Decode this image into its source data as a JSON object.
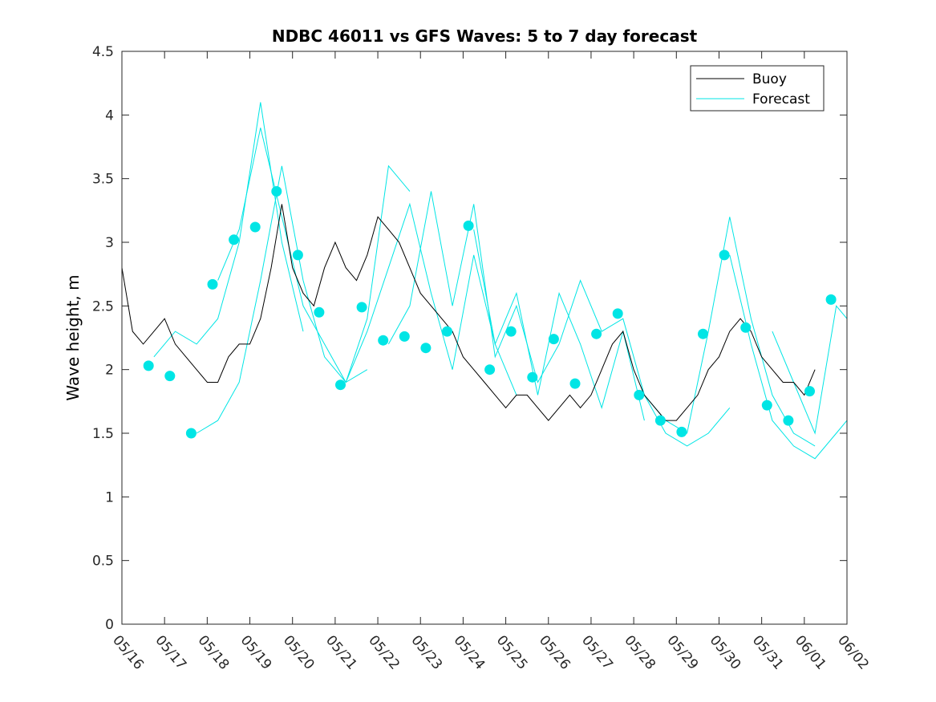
{
  "chart_data": {
    "type": "line",
    "title": "NDBC 46011 vs GFS Waves: 5 to 7 day forecast",
    "xlabel": "",
    "ylabel": "Wave height, m",
    "xlim": [
      "05/16",
      "06/02"
    ],
    "ylim": [
      0,
      4.5
    ],
    "x_ticks": [
      "05/16",
      "05/17",
      "05/18",
      "05/19",
      "05/20",
      "05/21",
      "05/22",
      "05/23",
      "05/24",
      "05/25",
      "05/26",
      "05/27",
      "05/28",
      "05/29",
      "05/30",
      "05/31",
      "06/01",
      "06/02"
    ],
    "y_ticks": [
      "0",
      "0.5",
      "1",
      "1.5",
      "2",
      "2.5",
      "3",
      "3.5",
      "4",
      "4.5"
    ],
    "grid": false,
    "legend": {
      "placement": "top-right",
      "entries": [
        {
          "label": "Buoy",
          "color": "#000000"
        },
        {
          "label": "Forecast",
          "color": "#00e5e5"
        }
      ]
    },
    "series": [
      {
        "name": "Buoy",
        "color": "#000000",
        "x": [
          "05/16 00:00",
          "05/16 06:00",
          "05/16 12:00",
          "05/16 18:00",
          "05/17 00:00",
          "05/17 06:00",
          "05/17 12:00",
          "05/17 18:00",
          "05/18 00:00",
          "05/18 06:00",
          "05/18 12:00",
          "05/18 18:00",
          "05/19 00:00",
          "05/19 06:00",
          "05/19 12:00",
          "05/19 18:00",
          "05/20 00:00",
          "05/20 06:00",
          "05/20 12:00",
          "05/20 18:00",
          "05/21 00:00",
          "05/21 06:00",
          "05/21 12:00",
          "05/21 18:00",
          "05/22 00:00",
          "05/22 06:00",
          "05/22 12:00",
          "05/22 18:00",
          "05/23 00:00",
          "05/23 06:00",
          "05/23 12:00",
          "05/23 18:00",
          "05/24 00:00",
          "05/24 06:00",
          "05/24 12:00",
          "05/24 18:00",
          "05/25 00:00",
          "05/25 06:00",
          "05/25 12:00",
          "05/25 18:00",
          "05/26 00:00",
          "05/26 06:00",
          "05/26 12:00",
          "05/26 18:00",
          "05/27 00:00",
          "05/27 06:00",
          "05/27 12:00",
          "05/27 18:00",
          "05/28 00:00",
          "05/28 06:00",
          "05/28 12:00",
          "05/28 18:00",
          "05/29 00:00",
          "05/29 06:00",
          "05/29 12:00",
          "05/29 18:00",
          "05/30 00:00",
          "05/30 06:00",
          "05/30 12:00",
          "05/30 18:00",
          "05/31 00:00",
          "05/31 06:00",
          "05/31 12:00",
          "05/31 18:00",
          "06/01 00:00",
          "06/01 06:00"
        ],
        "values": [
          2.8,
          2.3,
          2.2,
          2.3,
          2.4,
          2.2,
          2.1,
          2.0,
          1.9,
          1.9,
          2.1,
          2.2,
          2.2,
          2.4,
          2.8,
          3.3,
          2.8,
          2.6,
          2.5,
          2.8,
          3.0,
          2.8,
          2.7,
          2.9,
          3.2,
          3.1,
          3.0,
          2.8,
          2.6,
          2.5,
          2.4,
          2.3,
          2.1,
          2.0,
          1.9,
          1.8,
          1.7,
          1.8,
          1.8,
          1.7,
          1.6,
          1.7,
          1.8,
          1.7,
          1.8,
          2.0,
          2.2,
          2.3,
          2.0,
          1.8,
          1.7,
          1.6,
          1.6,
          1.7,
          1.8,
          2.0,
          2.1,
          2.3,
          2.4,
          2.3,
          2.1,
          2.0,
          1.9,
          1.9,
          1.8,
          2.0
        ]
      },
      {
        "name": "Forecast",
        "color": "#00e5e5",
        "points_x": [
          "05/16 15:00",
          "05/17 03:00",
          "05/17 15:00",
          "05/18 03:00",
          "05/18 15:00",
          "05/19 03:00",
          "05/19 15:00",
          "05/20 03:00",
          "05/20 15:00",
          "05/21 03:00",
          "05/21 15:00",
          "05/22 03:00",
          "05/22 15:00",
          "05/23 03:00",
          "05/23 15:00",
          "05/24 03:00",
          "05/24 15:00",
          "05/25 03:00",
          "05/25 15:00",
          "05/26 03:00",
          "05/26 15:00",
          "05/27 03:00",
          "05/27 15:00",
          "05/28 03:00",
          "05/28 15:00",
          "05/29 03:00",
          "05/29 15:00",
          "05/30 03:00",
          "05/30 15:00",
          "05/31 03:00",
          "05/31 15:00",
          "06/01 03:00",
          "06/01 15:00"
        ],
        "points_y": [
          2.03,
          1.95,
          1.5,
          2.67,
          3.02,
          3.12,
          3.4,
          2.9,
          2.45,
          1.88,
          2.49,
          2.23,
          2.26,
          2.17,
          2.3,
          3.13,
          2.0,
          2.3,
          1.94,
          2.24,
          1.89,
          2.28,
          2.44,
          1.8,
          1.6,
          1.51,
          2.28,
          2.9,
          2.33,
          1.72,
          1.6,
          1.83,
          2.55
        ],
        "runs": [
          {
            "x": [
              "05/16 18:00",
              "05/17 06:00",
              "05/17 18:00",
              "05/18 06:00",
              "05/18 18:00",
              "05/19 06:00",
              "05/19 18:00",
              "05/20 06:00"
            ],
            "values": [
              2.1,
              2.3,
              2.2,
              2.4,
              3.0,
              4.1,
              3.0,
              2.3
            ]
          },
          {
            "x": [
              "05/17 18:00",
              "05/18 06:00",
              "05/18 18:00",
              "05/19 06:00",
              "05/19 18:00",
              "05/20 06:00",
              "05/20 18:00",
              "05/21 06:00",
              "05/21 18:00"
            ],
            "values": [
              1.5,
              1.6,
              1.9,
              2.7,
              3.6,
              2.7,
              2.1,
              1.9,
              2.0
            ]
          },
          {
            "x": [
              "05/18 06:00",
              "05/18 18:00",
              "05/19 06:00",
              "05/19 18:00",
              "05/20 06:00",
              "05/20 18:00",
              "05/21 06:00",
              "05/21 18:00",
              "05/22 06:00",
              "05/22 18:00"
            ],
            "values": [
              2.7,
              3.1,
              3.9,
              3.2,
              2.5,
              2.2,
              1.9,
              2.4,
              3.6,
              3.4
            ]
          },
          {
            "x": [
              "05/21 06:00",
              "05/21 18:00",
              "05/22 06:00",
              "05/22 18:00",
              "05/23 06:00",
              "05/23 18:00",
              "05/24 06:00",
              "05/24 18:00",
              "05/25 06:00"
            ],
            "values": [
              1.9,
              2.3,
              2.8,
              3.3,
              2.6,
              2.0,
              2.9,
              2.2,
              1.8
            ]
          },
          {
            "x": [
              "05/22 06:00",
              "05/22 18:00",
              "05/23 06:00",
              "05/23 18:00",
              "05/24 06:00",
              "05/24 18:00",
              "05/25 06:00",
              "05/25 18:00",
              "05/26 06:00"
            ],
            "values": [
              2.2,
              2.5,
              3.4,
              2.5,
              3.3,
              2.1,
              2.5,
              1.9,
              2.2
            ]
          },
          {
            "x": [
              "05/24 06:00",
              "05/24 18:00",
              "05/25 06:00",
              "05/25 18:00",
              "05/26 06:00",
              "05/26 18:00",
              "05/27 06:00",
              "05/27 18:00",
              "05/28 06:00"
            ],
            "values": [
              3.1,
              2.2,
              2.6,
              1.8,
              2.6,
              2.2,
              1.7,
              2.3,
              1.6
            ]
          },
          {
            "x": [
              "05/26 06:00",
              "05/26 18:00",
              "05/27 06:00",
              "05/27 18:00",
              "05/28 06:00",
              "05/28 18:00",
              "05/29 06:00",
              "05/29 18:00",
              "05/30 06:00"
            ],
            "values": [
              2.2,
              2.7,
              2.3,
              2.4,
              1.8,
              1.5,
              1.4,
              1.5,
              1.7
            ]
          },
          {
            "x": [
              "05/28 06:00",
              "05/28 18:00",
              "05/29 06:00",
              "05/29 18:00",
              "05/30 06:00",
              "05/30 18:00",
              "05/31 06:00",
              "05/31 18:00",
              "06/01 06:00"
            ],
            "values": [
              1.8,
              1.6,
              1.5,
              2.3,
              3.2,
              2.4,
              1.8,
              1.5,
              1.4
            ]
          },
          {
            "x": [
              "05/30 06:00",
              "05/30 18:00",
              "05/31 06:00",
              "05/31 18:00",
              "06/01 06:00",
              "06/01 18:00",
              "06/02 00:00"
            ],
            "values": [
              2.9,
              2.2,
              1.6,
              1.4,
              1.3,
              1.5,
              1.6
            ]
          },
          {
            "x": [
              "05/31 06:00",
              "05/31 18:00",
              "06/01 06:00",
              "06/01 18:00",
              "06/02 00:00"
            ],
            "values": [
              2.3,
              1.9,
              1.5,
              2.5,
              2.4
            ]
          }
        ]
      }
    ]
  }
}
